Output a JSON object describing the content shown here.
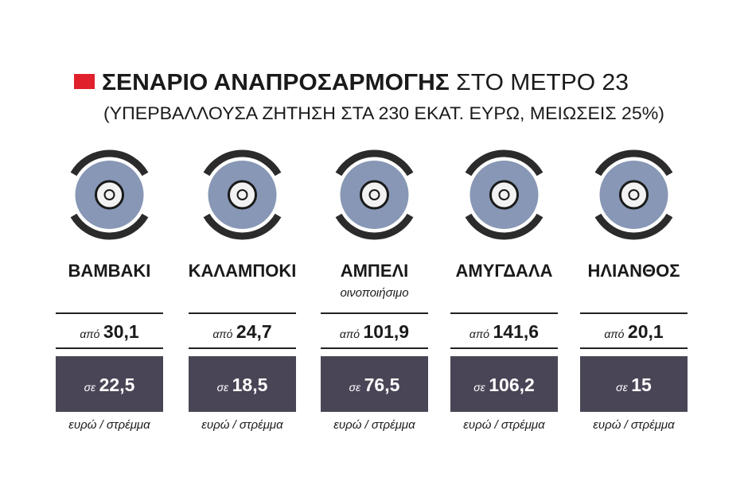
{
  "header": {
    "title_bold": "ΣΕΝΑΡΙΟ ΑΝΑΠΡΟΣΑΡΜΟΓΗΣ",
    "title_rest": "ΣΤΟ ΜΕΤΡΟ 23",
    "subtitle": "(ΥΠΕΡΒΑΛΛΟΥΣΑ ΖΗΤΗΣΗ ΣΤΑ 230 ΕΚΑΤ. ΕΥΡΩ, ΜΕΙΩΣΕΙΣ 25%)"
  },
  "items": [
    {
      "name": "ΒΑΜΒΑΚΙ",
      "from_prefix": "από",
      "from": "30,1",
      "to_prefix": "σε",
      "to": "22,5",
      "unit": "ευρώ / στρέμμα"
    },
    {
      "name": "ΚΑΛΑΜΠΟΚΙ",
      "from_prefix": "από",
      "from": "24,7",
      "to_prefix": "σε",
      "to": "18,5",
      "unit": "ευρώ / στρέμμα"
    },
    {
      "name": "ΑΜΠΕΛΙ",
      "note": "οινοποιήσιμο",
      "from_prefix": "από",
      "from": "101,9",
      "to_prefix": "σε",
      "to": "76,5",
      "unit": "ευρώ / στρέμμα"
    },
    {
      "name": "ΑΜΥΓΔΑΛΑ",
      "from_prefix": "από",
      "from": "141,6",
      "to_prefix": "σε",
      "to": "106,2",
      "unit": "ευρώ / στρέμμα"
    },
    {
      "name": "ΗΛΙΑΝΘΟΣ",
      "from_prefix": "από",
      "from": "20,1",
      "to_prefix": "σε",
      "to": "15",
      "unit": "ευρώ / στρέμμα"
    }
  ]
}
